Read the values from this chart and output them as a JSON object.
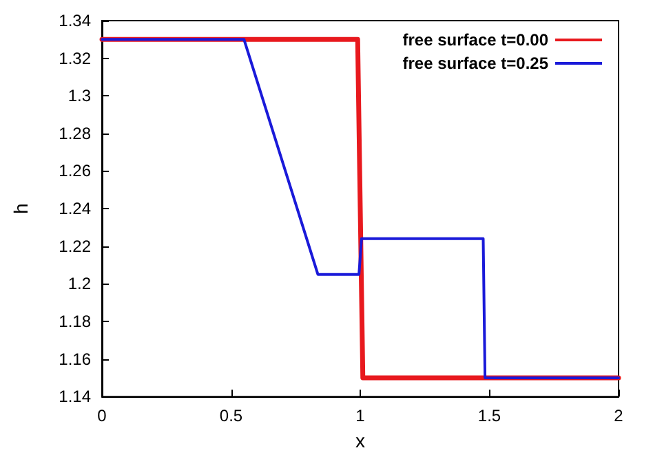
{
  "chart_data": {
    "type": "line",
    "xlabel": "x",
    "ylabel": "h",
    "xlim": [
      0,
      2
    ],
    "xticks": [
      0,
      0.5,
      1,
      1.5,
      2
    ],
    "ylim": [
      1.14,
      1.34
    ],
    "yticks": [
      1.14,
      1.16,
      1.18,
      1.2,
      1.22,
      1.24,
      1.26,
      1.28,
      1.3,
      1.32,
      1.34
    ],
    "grid": false,
    "legend": "top right",
    "marker": "none",
    "line_style": "solid",
    "series": [
      {
        "name": "free surface t=0.00",
        "color": "#e8191e",
        "x": [
          0,
          0.99,
          1.01,
          2
        ],
        "values": [
          1.33,
          1.33,
          1.15,
          1.15
        ]
      },
      {
        "name": "free surface t=0.25",
        "color": "#1a1ad9",
        "x": [
          0,
          0.55,
          0.836,
          0.995,
          1.005,
          1.476,
          1.483,
          2
        ],
        "values": [
          1.33,
          1.33,
          1.205,
          1.205,
          1.224,
          1.224,
          1.15,
          1.15
        ]
      }
    ]
  }
}
